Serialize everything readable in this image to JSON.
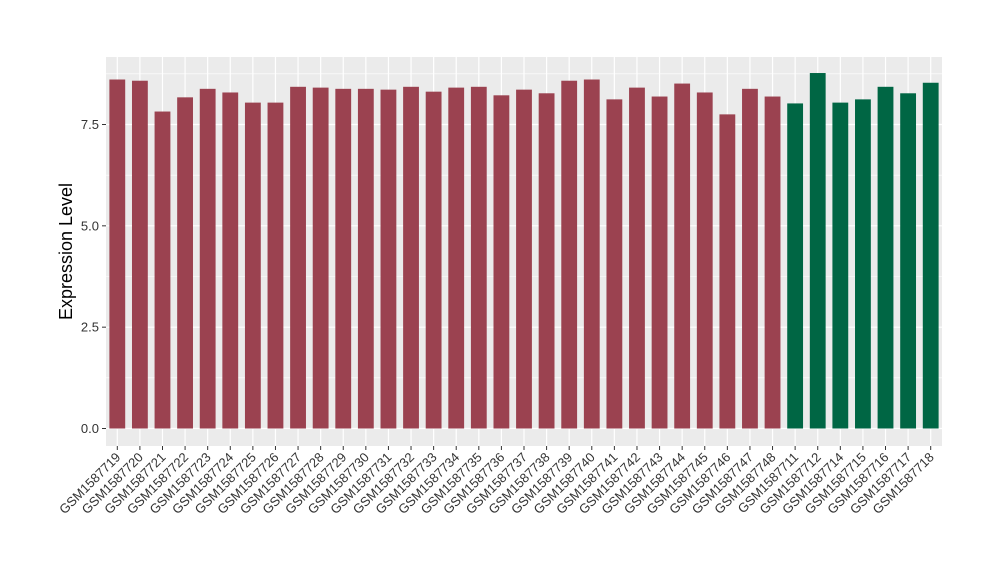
{
  "chart_data": {
    "type": "bar",
    "title": "",
    "xlabel": "",
    "ylabel": "Expression Level",
    "ylim": [
      0,
      9.0
    ],
    "yticks": [
      0.0,
      2.5,
      5.0,
      7.5
    ],
    "ytick_labels": [
      "0.0",
      "2.5",
      "5.0",
      "7.5"
    ],
    "grid": true,
    "legend": "none",
    "categories": [
      "GSM1587719",
      "GSM1587720",
      "GSM1587721",
      "GSM1587722",
      "GSM1587723",
      "GSM1587724",
      "GSM1587725",
      "GSM1587726",
      "GSM1587727",
      "GSM1587728",
      "GSM1587729",
      "GSM1587730",
      "GSM1587731",
      "GSM1587732",
      "GSM1587733",
      "GSM1587734",
      "GSM1587735",
      "GSM1587736",
      "GSM1587737",
      "GSM1587738",
      "GSM1587739",
      "GSM1587740",
      "GSM1587741",
      "GSM1587742",
      "GSM1587743",
      "GSM1587744",
      "GSM1587745",
      "GSM1587746",
      "GSM1587747",
      "GSM1587748",
      "GSM1587711",
      "GSM1587712",
      "GSM1587714",
      "GSM1587715",
      "GSM1587716",
      "GSM1587717",
      "GSM1587718"
    ],
    "values": [
      8.61,
      8.58,
      7.82,
      8.17,
      8.38,
      8.29,
      8.04,
      8.04,
      8.43,
      8.41,
      8.38,
      8.38,
      8.36,
      8.43,
      8.31,
      8.41,
      8.43,
      8.22,
      8.36,
      8.27,
      8.58,
      8.61,
      8.12,
      8.41,
      8.19,
      8.51,
      8.29,
      7.75,
      8.38,
      8.19,
      8.02,
      8.77,
      8.04,
      8.12,
      8.43,
      8.27,
      8.53
    ],
    "group": [
      0,
      0,
      0,
      0,
      0,
      0,
      0,
      0,
      0,
      0,
      0,
      0,
      0,
      0,
      0,
      0,
      0,
      0,
      0,
      0,
      0,
      0,
      0,
      0,
      0,
      0,
      0,
      0,
      0,
      0,
      1,
      1,
      1,
      1,
      1,
      1,
      1
    ],
    "group_colors": [
      "#9b4250",
      "#006644"
    ]
  },
  "style": {
    "panel_background": "#ebebeb",
    "grid_color": "#ffffff",
    "tick_color": "#333333"
  }
}
